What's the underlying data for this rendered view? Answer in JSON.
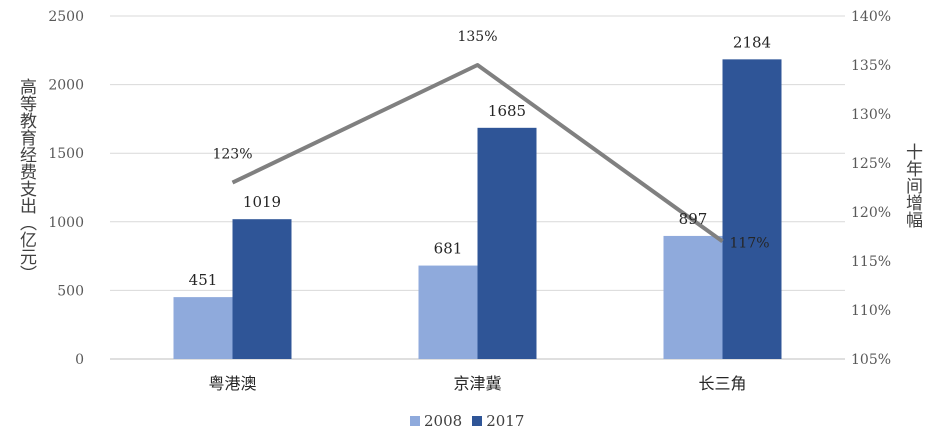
{
  "chart_data": {
    "type": "bar+line",
    "categories": [
      "粤港澳",
      "京津冀",
      "长三角"
    ],
    "series": [
      {
        "name": "2008",
        "type": "bar",
        "axis": "left",
        "color": "#8faadc",
        "values": [
          451,
          681,
          897
        ]
      },
      {
        "name": "2017",
        "type": "bar",
        "axis": "left",
        "color": "#2f5597",
        "values": [
          1019,
          1685,
          2184
        ]
      },
      {
        "type": "line",
        "axis": "right",
        "color": "#808080",
        "values": [
          123,
          135,
          117
        ],
        "labels": [
          "123%",
          "135%",
          "117%"
        ]
      }
    ],
    "ylabel": "高等教育经费支出（亿元）",
    "y2label": "十年间增幅",
    "ylim": [
      0,
      2500
    ],
    "y2lim": [
      105,
      140
    ],
    "yticks": [
      "0",
      "500",
      "1000",
      "1500",
      "2000",
      "2500"
    ],
    "y2ticks": [
      "105%",
      "110%",
      "115%",
      "120%",
      "125%",
      "130%",
      "135%",
      "140%"
    ],
    "grid": true,
    "legend_position": "bottom",
    "legend": [
      "2008",
      "2017"
    ]
  }
}
